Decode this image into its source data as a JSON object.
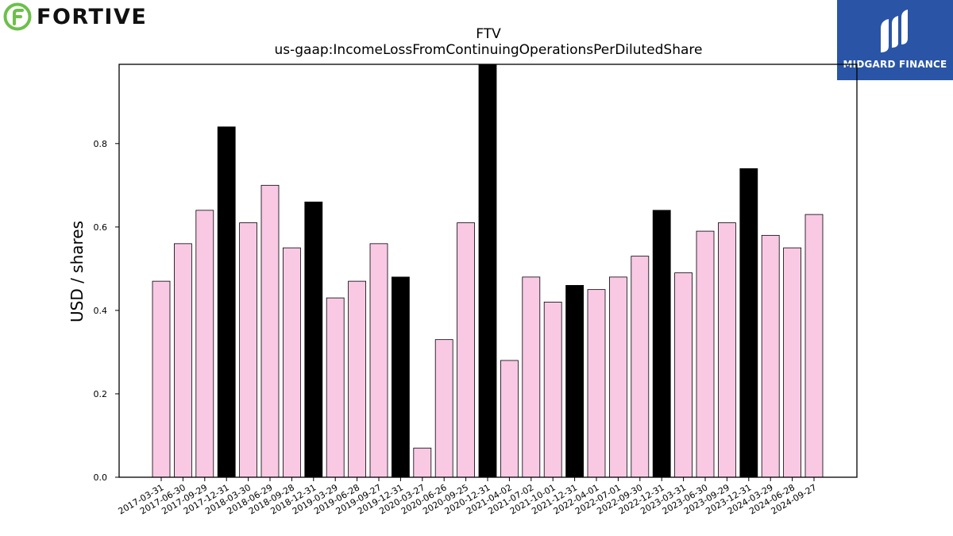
{
  "branding": {
    "company_logo_text": "FORTIVE",
    "partner_logo_text": "MIDGARD FINANCE"
  },
  "colors": {
    "bar_default": "#f9c9e4",
    "bar_highlight": "#000000",
    "logo_green": "#6cc04a",
    "partner_bg": "#2a55a6"
  },
  "chart_data": {
    "type": "bar",
    "title": "FTV",
    "subtitle": "us-gaap:IncomeLossFromContinuingOperationsPerDilutedShare",
    "xlabel": "",
    "ylabel": "USD / shares",
    "ylim": [
      0,
      0.99
    ],
    "yticks": [
      "0.0",
      "0.2",
      "0.4",
      "0.6",
      "0.8"
    ],
    "grid": false,
    "categories": [
      "2017-03-31",
      "2017-06-30",
      "2017-09-29",
      "2017-12-31",
      "2018-03-30",
      "2018-06-29",
      "2018-09-28",
      "2018-12-31",
      "2019-03-29",
      "2019-06-28",
      "2019-09-27",
      "2019-12-31",
      "2020-03-27",
      "2020-06-26",
      "2020-09-25",
      "2020-12-31",
      "2021-04-02",
      "2021-07-02",
      "2021-10-01",
      "2021-12-31",
      "2022-04-01",
      "2022-07-01",
      "2022-09-30",
      "2022-12-31",
      "2023-03-31",
      "2023-06-30",
      "2023-09-29",
      "2023-12-31",
      "2024-03-29",
      "2024-06-28",
      "2024-09-27"
    ],
    "values": [
      0.47,
      0.56,
      0.64,
      0.84,
      0.61,
      0.7,
      0.55,
      0.66,
      0.43,
      0.47,
      0.56,
      0.48,
      0.07,
      0.33,
      0.61,
      1.0,
      0.28,
      0.48,
      0.42,
      0.46,
      0.45,
      0.48,
      0.53,
      0.64,
      0.49,
      0.59,
      0.61,
      0.74,
      0.58,
      0.55,
      0.63
    ],
    "highlight": [
      false,
      false,
      false,
      true,
      false,
      false,
      false,
      true,
      false,
      false,
      false,
      true,
      false,
      false,
      false,
      true,
      false,
      false,
      false,
      true,
      false,
      false,
      false,
      true,
      false,
      false,
      false,
      true,
      false,
      false,
      false
    ]
  }
}
